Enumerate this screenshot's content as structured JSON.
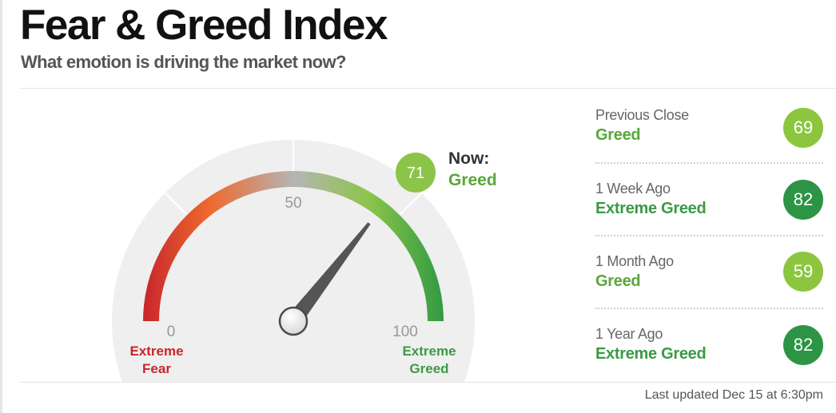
{
  "page": {
    "title": "Fear & Greed Index",
    "subtitle": "What emotion is driving the market now?"
  },
  "gauge": {
    "value": 71,
    "min": 0,
    "max": 100,
    "tick_min": "0",
    "tick_mid": "50",
    "tick_max": "100",
    "label_low_line1": "Extreme",
    "label_low_line2": "Fear",
    "label_high_line1": "Extreme",
    "label_high_line2": "Greed",
    "now_label": "Now:",
    "now_rating": "Greed",
    "now_value": "71",
    "colors": {
      "extreme_fear": "#c8262b",
      "fear": "#ee6a2e",
      "neutral": "#b5b5b5",
      "greed": "#8cc44a",
      "extreme_greed": "#2f9a42",
      "needle": "#555555"
    }
  },
  "history": [
    {
      "label": "Previous Close",
      "rating": "Greed",
      "value": "69",
      "color": "#8cc63f",
      "rating_color": "#57a83a"
    },
    {
      "label": "1 Week Ago",
      "rating": "Extreme Greed",
      "value": "82",
      "color": "#2d9446",
      "rating_color": "#3a9a45"
    },
    {
      "label": "1 Month Ago",
      "rating": "Greed",
      "value": "59",
      "color": "#8cc63f",
      "rating_color": "#57a83a"
    },
    {
      "label": "1 Year Ago",
      "rating": "Extreme Greed",
      "value": "82",
      "color": "#2d9446",
      "rating_color": "#3a9a45"
    }
  ],
  "footer": {
    "last_updated": "Last updated Dec 15 at 6:30pm"
  }
}
